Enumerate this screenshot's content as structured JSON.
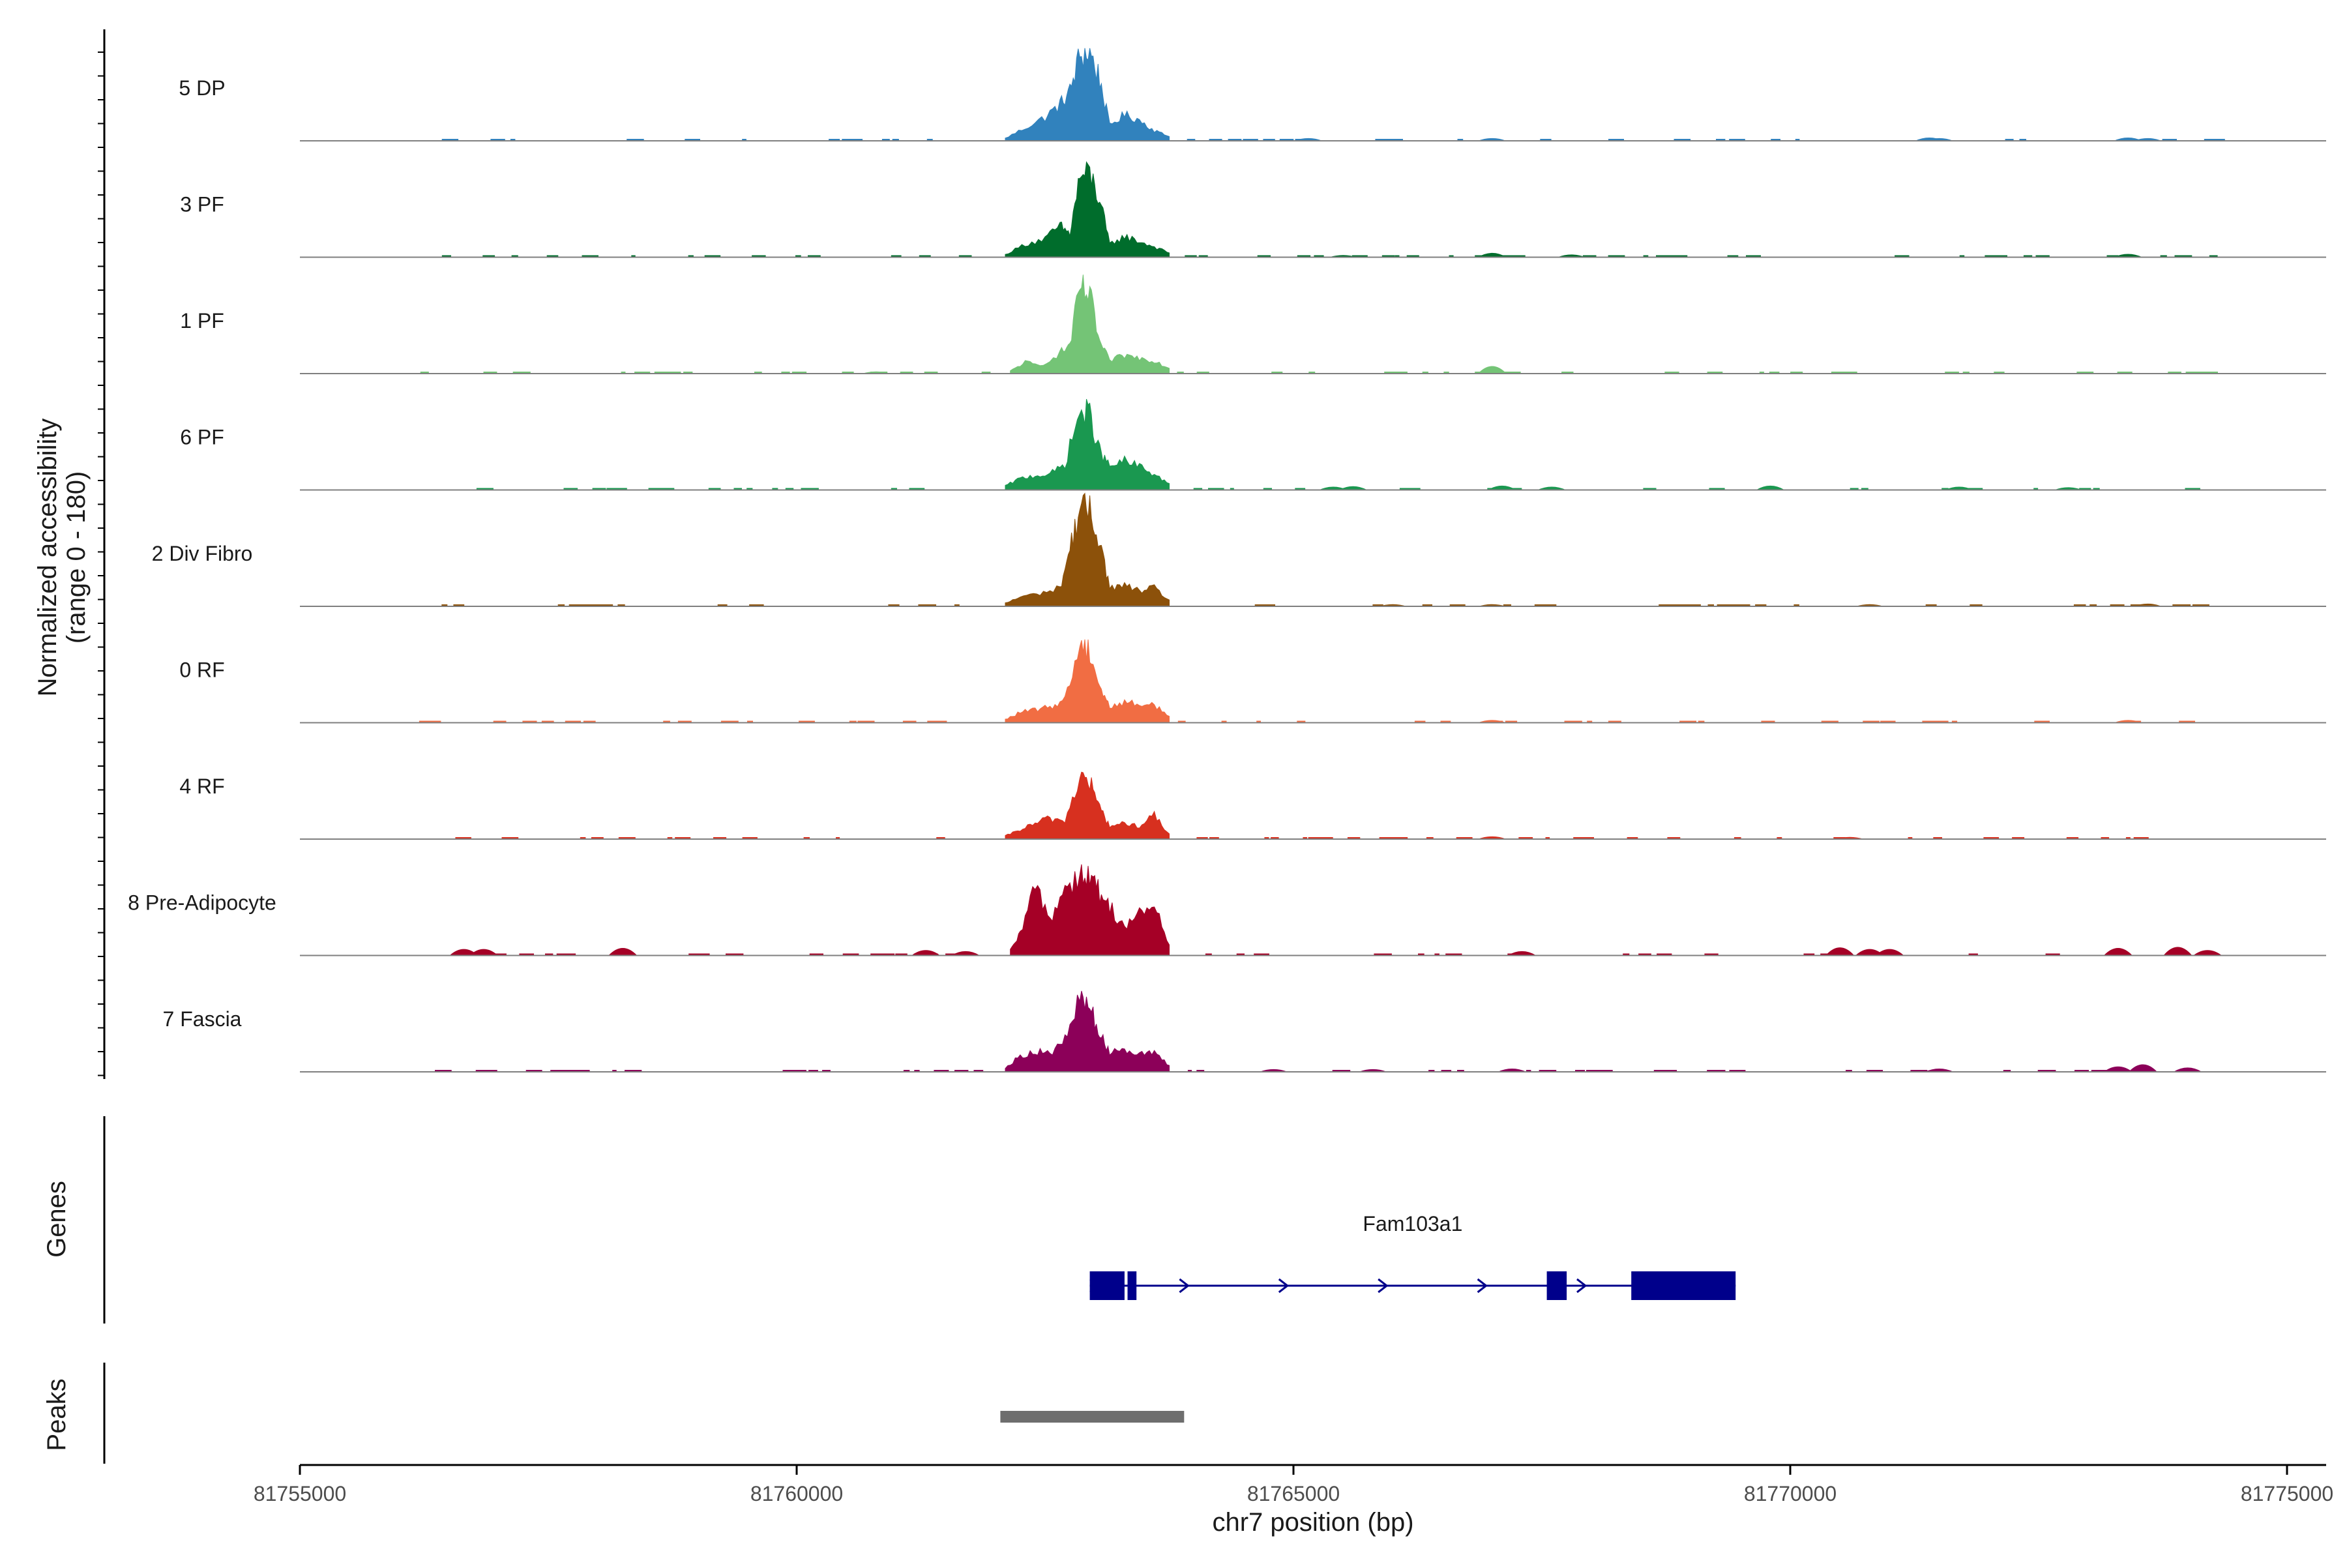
{
  "chart_data": {
    "type": "area",
    "title": "",
    "xlabel": "chr7 position (bp)",
    "ylabel_line1": "Normalized accessibility",
    "ylabel_line2": "(range 0 - 180)",
    "ylim": [
      0,
      180
    ],
    "xlim": [
      81755000,
      81775400
    ],
    "x_ticks": [
      81755000,
      81760000,
      81765000,
      81770000,
      81775000
    ],
    "x_tick_labels": [
      "81755000",
      "81760000",
      "81765000",
      "81770000",
      "81775000"
    ],
    "track_x_start": 81755000,
    "track_x_end": 81774500,
    "genes_panel_title": "Genes",
    "peaks_panel_title": "Peaks",
    "series": [
      {
        "name": "5 DP",
        "color": "#3182bd",
        "main": [
          [
            81762100,
            5
          ],
          [
            81762300,
            25
          ],
          [
            81762500,
            45
          ],
          [
            81762650,
            70
          ],
          [
            81762750,
            95
          ],
          [
            81762850,
            165
          ],
          [
            81762950,
            170
          ],
          [
            81763050,
            120
          ],
          [
            81763150,
            30
          ],
          [
            81763300,
            50
          ],
          [
            81763450,
            40
          ],
          [
            81763600,
            20
          ],
          [
            81763750,
            8
          ]
        ],
        "bumps": [
          [
            81771400,
            6
          ],
          [
            81771500,
            5
          ],
          [
            81773400,
            6
          ],
          [
            81773600,
            5
          ],
          [
            81765150,
            5
          ],
          [
            81767000,
            5
          ]
        ]
      },
      {
        "name": "3 PF",
        "color": "#006d2c",
        "main": [
          [
            81762100,
            5
          ],
          [
            81762300,
            25
          ],
          [
            81762500,
            35
          ],
          [
            81762650,
            60
          ],
          [
            81762750,
            45
          ],
          [
            81762850,
            155
          ],
          [
            81762950,
            160
          ],
          [
            81763050,
            110
          ],
          [
            81763150,
            25
          ],
          [
            81763300,
            40
          ],
          [
            81763450,
            30
          ],
          [
            81763600,
            20
          ],
          [
            81763750,
            8
          ]
        ],
        "bumps": [
          [
            81767000,
            8
          ],
          [
            81765500,
            4
          ],
          [
            81767800,
            5
          ],
          [
            81773400,
            6
          ]
        ]
      },
      {
        "name": "1 PF",
        "color": "#74c476",
        "main": [
          [
            81762150,
            5
          ],
          [
            81762300,
            22
          ],
          [
            81762450,
            15
          ],
          [
            81762650,
            40
          ],
          [
            81762750,
            55
          ],
          [
            81762850,
            165
          ],
          [
            81762950,
            150
          ],
          [
            81763050,
            60
          ],
          [
            81763150,
            25
          ],
          [
            81763300,
            35
          ],
          [
            81763450,
            30
          ],
          [
            81763600,
            25
          ],
          [
            81763750,
            10
          ]
        ],
        "bumps": [
          [
            81767000,
            14
          ],
          [
            81760800,
            4
          ]
        ]
      },
      {
        "name": "6 PF",
        "color": "#1a9850",
        "main": [
          [
            81762100,
            8
          ],
          [
            81762250,
            22
          ],
          [
            81762400,
            28
          ],
          [
            81762550,
            30
          ],
          [
            81762700,
            50
          ],
          [
            81762850,
            150
          ],
          [
            81762950,
            145
          ],
          [
            81763050,
            75
          ],
          [
            81763150,
            45
          ],
          [
            81763300,
            55
          ],
          [
            81763450,
            45
          ],
          [
            81763600,
            30
          ],
          [
            81763750,
            12
          ]
        ],
        "bumps": [
          [
            81765400,
            6
          ],
          [
            81765600,
            7
          ],
          [
            81767100,
            8
          ],
          [
            81767600,
            6
          ],
          [
            81769800,
            8
          ],
          [
            81771700,
            6
          ],
          [
            81772800,
            5
          ]
        ]
      },
      {
        "name": "2 Div Fibro",
        "color": "#8c510a",
        "main": [
          [
            81762100,
            6
          ],
          [
            81762250,
            18
          ],
          [
            81762450,
            25
          ],
          [
            81762650,
            35
          ],
          [
            81762750,
            110
          ],
          [
            81762850,
            190
          ],
          [
            81762950,
            180
          ],
          [
            81763050,
            130
          ],
          [
            81763150,
            35
          ],
          [
            81763300,
            40
          ],
          [
            81763450,
            30
          ],
          [
            81763600,
            35
          ],
          [
            81763750,
            12
          ]
        ],
        "bumps": [
          [
            81766000,
            4
          ],
          [
            81767000,
            4
          ],
          [
            81770800,
            4
          ],
          [
            81773600,
            5
          ]
        ]
      },
      {
        "name": "0 RF",
        "color": "#f16d43",
        "main": [
          [
            81762100,
            6
          ],
          [
            81762250,
            20
          ],
          [
            81762400,
            25
          ],
          [
            81762550,
            30
          ],
          [
            81762700,
            45
          ],
          [
            81762850,
            150
          ],
          [
            81762950,
            140
          ],
          [
            81763050,
            70
          ],
          [
            81763150,
            30
          ],
          [
            81763300,
            40
          ],
          [
            81763450,
            35
          ],
          [
            81763600,
            35
          ],
          [
            81763750,
            12
          ]
        ],
        "bumps": [
          [
            81767000,
            5
          ],
          [
            81773400,
            5
          ]
        ]
      },
      {
        "name": "4 RF",
        "color": "#d7301f",
        "main": [
          [
            81762100,
            6
          ],
          [
            81762250,
            18
          ],
          [
            81762400,
            30
          ],
          [
            81762550,
            40
          ],
          [
            81762700,
            35
          ],
          [
            81762850,
            120
          ],
          [
            81762950,
            110
          ],
          [
            81763050,
            60
          ],
          [
            81763150,
            25
          ],
          [
            81763300,
            30
          ],
          [
            81763450,
            25
          ],
          [
            81763600,
            45
          ],
          [
            81763750,
            10
          ]
        ],
        "bumps": [
          [
            81767000,
            5
          ],
          [
            81770600,
            4
          ]
        ]
      },
      {
        "name": "8 Pre-Adipocyte",
        "color": "#a50026",
        "main": [
          [
            81762150,
            10
          ],
          [
            81762250,
            40
          ],
          [
            81762400,
            135
          ],
          [
            81762550,
            70
          ],
          [
            81762700,
            130
          ],
          [
            81762850,
            160
          ],
          [
            81762950,
            150
          ],
          [
            81763050,
            120
          ],
          [
            81763150,
            95
          ],
          [
            81763300,
            55
          ],
          [
            81763450,
            80
          ],
          [
            81763600,
            95
          ],
          [
            81763750,
            20
          ]
        ],
        "bumps": [
          [
            81756650,
            12
          ],
          [
            81756850,
            12
          ],
          [
            81758250,
            14
          ],
          [
            81761300,
            10
          ],
          [
            81761700,
            8
          ],
          [
            81767300,
            8
          ],
          [
            81770500,
            15
          ],
          [
            81770800,
            12
          ],
          [
            81771000,
            12
          ],
          [
            81773300,
            14
          ],
          [
            81773900,
            16
          ],
          [
            81774200,
            10
          ]
        ]
      },
      {
        "name": "7 Fascia",
        "color": "#8c0059",
        "main": [
          [
            81762100,
            8
          ],
          [
            81762250,
            30
          ],
          [
            81762400,
            40
          ],
          [
            81762550,
            35
          ],
          [
            81762700,
            60
          ],
          [
            81762850,
            140
          ],
          [
            81762950,
            130
          ],
          [
            81763050,
            70
          ],
          [
            81763150,
            40
          ],
          [
            81763300,
            45
          ],
          [
            81763450,
            35
          ],
          [
            81763600,
            35
          ],
          [
            81763750,
            12
          ]
        ],
        "bumps": [
          [
            81764800,
            5
          ],
          [
            81765800,
            5
          ],
          [
            81767200,
            6
          ],
          [
            81771500,
            6
          ],
          [
            81773300,
            10
          ],
          [
            81773550,
            14
          ],
          [
            81774000,
            8
          ]
        ]
      }
    ],
    "gene": {
      "name": "Fam103a1",
      "start": 81762950,
      "end": 81769450,
      "strand": "+",
      "exons": [
        [
          81762950,
          81763300
        ],
        [
          81763330,
          81763420
        ],
        [
          81767550,
          81767750
        ],
        [
          81768400,
          81769450
        ]
      ],
      "arrows": [
        81763000,
        81763900,
        81764900,
        81765900,
        81766900,
        81767900
      ]
    },
    "peaks": [
      [
        81762050,
        81763900
      ]
    ]
  },
  "colors": {
    "gene": "#00008b",
    "peak": "#6e6e6e",
    "baseline": "#7f7f7f",
    "axis": "#000000"
  }
}
